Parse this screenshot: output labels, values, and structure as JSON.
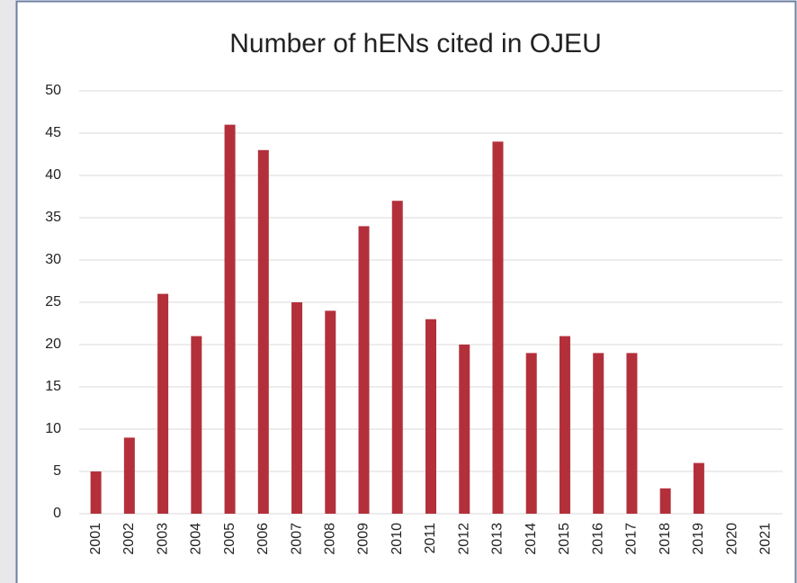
{
  "chart_data": {
    "type": "bar",
    "title": "Number of hENs cited in OJEU",
    "categories": [
      "2001",
      "2002",
      "2003",
      "2004",
      "2005",
      "2006",
      "2007",
      "2008",
      "2009",
      "2010",
      "2011",
      "2012",
      "2013",
      "2014",
      "2015",
      "2016",
      "2017",
      "2018",
      "2019",
      "2020",
      "2021"
    ],
    "values": [
      5,
      9,
      26,
      21,
      46,
      43,
      25,
      24,
      34,
      37,
      23,
      20,
      44,
      19,
      21,
      19,
      19,
      3,
      6,
      0,
      0
    ],
    "color": "#b3303b",
    "ylim": [
      0,
      50
    ],
    "yticks": [
      0,
      5,
      10,
      15,
      20,
      25,
      30,
      35,
      40,
      45,
      50
    ],
    "grid": true
  }
}
